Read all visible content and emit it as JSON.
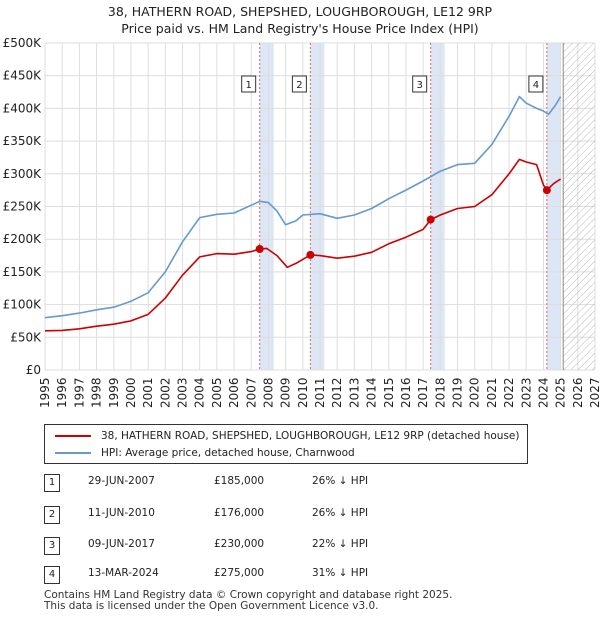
{
  "title_line1": "38, HATHERN ROAD, SHEPSHED, LOUGHBOROUGH, LE12 9RP",
  "title_line2": "Price paid vs. HM Land Registry's House Price Index (HPI)",
  "colors": {
    "property": "#cc0000",
    "hpi": "#6699cc",
    "grid": "#dddddd",
    "sale_shade": "#dde6f5",
    "sale_line": "#e06666",
    "hatch": "#bbbbbb"
  },
  "chart_data": {
    "type": "line",
    "title": "Price paid vs. HM Land Registry's House Price Index (HPI)",
    "xlim": [
      1995,
      2027
    ],
    "ylim": [
      0,
      500000
    ],
    "x_ticks": [
      "1995",
      "1996",
      "1997",
      "1998",
      "1999",
      "2000",
      "2001",
      "2002",
      "2003",
      "2004",
      "2005",
      "2006",
      "2007",
      "2008",
      "2009",
      "2010",
      "2011",
      "2012",
      "2013",
      "2014",
      "2015",
      "2016",
      "2017",
      "2018",
      "2019",
      "2020",
      "2021",
      "2022",
      "2023",
      "2024",
      "2025",
      "2026",
      "2027"
    ],
    "y_ticks": [
      {
        "value": 0,
        "label": "£0"
      },
      {
        "value": 50000,
        "label": "£50K"
      },
      {
        "value": 100000,
        "label": "£100K"
      },
      {
        "value": 150000,
        "label": "£150K"
      },
      {
        "value": 200000,
        "label": "£200K"
      },
      {
        "value": 250000,
        "label": "£250K"
      },
      {
        "value": 300000,
        "label": "£300K"
      },
      {
        "value": 350000,
        "label": "£350K"
      },
      {
        "value": 400000,
        "label": "£400K"
      },
      {
        "value": 450000,
        "label": "£450K"
      },
      {
        "value": 500000,
        "label": "£500K"
      }
    ],
    "forecast_from": 2025.15,
    "series": [
      {
        "name": "38, HATHERN ROAD, SHEPSHED, LOUGHBOROUGH, LE12 9RP (detached house)",
        "color": "#cc0000",
        "points": [
          [
            1995,
            60000
          ],
          [
            1996,
            60500
          ],
          [
            1997,
            63000
          ],
          [
            1998,
            67000
          ],
          [
            1999,
            70000
          ],
          [
            2000,
            75000
          ],
          [
            2001,
            85000
          ],
          [
            2002,
            110000
          ],
          [
            2003,
            145000
          ],
          [
            2004,
            173000
          ],
          [
            2005,
            178000
          ],
          [
            2006,
            177000
          ],
          [
            2007,
            181000
          ],
          [
            2007.49,
            185000
          ],
          [
            2007.9,
            186000
          ],
          [
            2008.5,
            175000
          ],
          [
            2009.1,
            157000
          ],
          [
            2009.6,
            163000
          ],
          [
            2010.44,
            176000
          ],
          [
            2011,
            175000
          ],
          [
            2012,
            171000
          ],
          [
            2013,
            174000
          ],
          [
            2014,
            180000
          ],
          [
            2015,
            193000
          ],
          [
            2016,
            203000
          ],
          [
            2017,
            215000
          ],
          [
            2017.44,
            230000
          ],
          [
            2018,
            237000
          ],
          [
            2019,
            247000
          ],
          [
            2020,
            250000
          ],
          [
            2021,
            268000
          ],
          [
            2022,
            300000
          ],
          [
            2022.6,
            322000
          ],
          [
            2023,
            318000
          ],
          [
            2023.6,
            314000
          ],
          [
            2024,
            283000
          ],
          [
            2024.2,
            275000
          ],
          [
            2024.6,
            285000
          ],
          [
            2025,
            292000
          ]
        ]
      },
      {
        "name": "HPI: Average price, detached house, Charnwood",
        "color": "#6699cc",
        "points": [
          [
            1995,
            80000
          ],
          [
            1996,
            83000
          ],
          [
            1997,
            87000
          ],
          [
            1998,
            92000
          ],
          [
            1999,
            96000
          ],
          [
            2000,
            105000
          ],
          [
            2001,
            118000
          ],
          [
            2002,
            150000
          ],
          [
            2003,
            196000
          ],
          [
            2004,
            233000
          ],
          [
            2005,
            238000
          ],
          [
            2006,
            240000
          ],
          [
            2007,
            252000
          ],
          [
            2007.5,
            258000
          ],
          [
            2008,
            256000
          ],
          [
            2008.5,
            243000
          ],
          [
            2009,
            222000
          ],
          [
            2009.6,
            228000
          ],
          [
            2010,
            237000
          ],
          [
            2011,
            239000
          ],
          [
            2012,
            232000
          ],
          [
            2013,
            237000
          ],
          [
            2014,
            247000
          ],
          [
            2015,
            262000
          ],
          [
            2016,
            275000
          ],
          [
            2017,
            289000
          ],
          [
            2018,
            304000
          ],
          [
            2019,
            314000
          ],
          [
            2020,
            316000
          ],
          [
            2021,
            345000
          ],
          [
            2022,
            388000
          ],
          [
            2022.6,
            418000
          ],
          [
            2023,
            408000
          ],
          [
            2023.6,
            400000
          ],
          [
            2024,
            396000
          ],
          [
            2024.3,
            391000
          ],
          [
            2024.7,
            405000
          ],
          [
            2025,
            418000
          ]
        ]
      }
    ],
    "sales": [
      {
        "label": "1",
        "x": 2007.49,
        "price": 185000
      },
      {
        "label": "2",
        "x": 2010.44,
        "price": 176000
      },
      {
        "label": "3",
        "x": 2017.44,
        "price": 230000
      },
      {
        "label": "4",
        "x": 2024.2,
        "price": 275000
      }
    ]
  },
  "legend": {
    "property_label": "38, HATHERN ROAD, SHEPSHED, LOUGHBOROUGH, LE12 9RP (detached house)",
    "hpi_label": "HPI: Average price, detached house, Charnwood"
  },
  "transactions": [
    {
      "num": "1",
      "date": "29-JUN-2007",
      "price": "£185,000",
      "hpi": "26% ↓ HPI"
    },
    {
      "num": "2",
      "date": "11-JUN-2010",
      "price": "£176,000",
      "hpi": "26% ↓ HPI"
    },
    {
      "num": "3",
      "date": "09-JUN-2017",
      "price": "£230,000",
      "hpi": "22% ↓ HPI"
    },
    {
      "num": "4",
      "date": "13-MAR-2024",
      "price": "£275,000",
      "hpi": "31% ↓ HPI"
    }
  ],
  "footer_line1": "Contains HM Land Registry data © Crown copyright and database right 2025.",
  "footer_line2": "This data is licensed under the Open Government Licence v3.0."
}
